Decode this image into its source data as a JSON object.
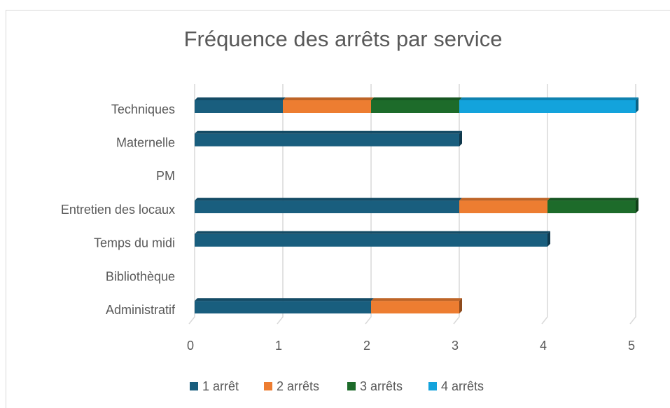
{
  "chart_data": {
    "type": "bar",
    "orientation": "horizontal",
    "stacked": true,
    "title": "Fréquence des arrêts par service",
    "categories": [
      "Techniques",
      "Maternelle",
      "PM",
      "Entretien des locaux",
      "Temps du midi",
      "Bibliothèque",
      "Administratif"
    ],
    "series": [
      {
        "name": "1 arrêt",
        "color": "#195e7e",
        "values": [
          1,
          3,
          0,
          3,
          4,
          0,
          2
        ]
      },
      {
        "name": "2 arrêts",
        "color": "#ed7d31",
        "values": [
          1,
          0,
          0,
          1,
          0,
          0,
          1
        ]
      },
      {
        "name": "3 arrêts",
        "color": "#1d6b2a",
        "values": [
          1,
          0,
          0,
          1,
          0,
          0,
          0
        ]
      },
      {
        "name": "4 arrêts",
        "color": "#13a3dc",
        "values": [
          2,
          0,
          0,
          0,
          0,
          0,
          0
        ]
      }
    ],
    "xlim": [
      0,
      5
    ],
    "xticks": [
      0,
      1,
      2,
      3,
      4,
      5
    ],
    "grid": true,
    "legend": "bottom"
  }
}
